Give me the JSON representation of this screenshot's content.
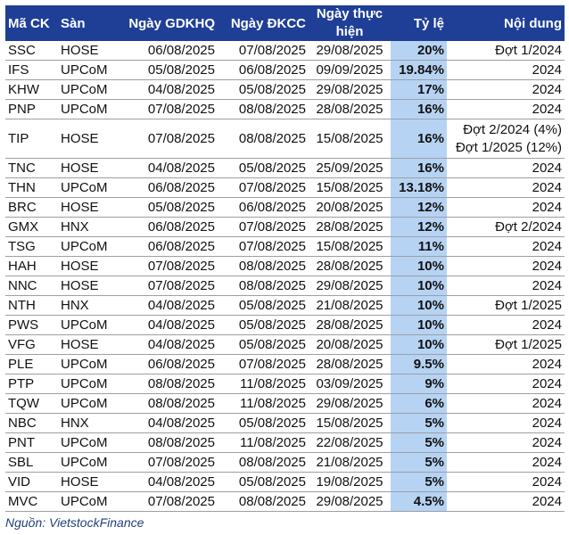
{
  "table": {
    "headers": {
      "code": "Mã CK",
      "exchange": "Sàn",
      "ex_date": "Ngày GDKHQ",
      "record_date": "Ngày ĐKCC",
      "pay_date": "Ngày thực hiện",
      "rate": "Tỷ lệ",
      "content": "Nội dung"
    },
    "rows": [
      {
        "code": "SSC",
        "exchange": "HOSE",
        "ex_date": "06/08/2025",
        "record_date": "07/08/2025",
        "pay_date": "29/08/2025",
        "rate": "20%",
        "content": "Đợt 1/2024"
      },
      {
        "code": "IFS",
        "exchange": "UPCoM",
        "ex_date": "05/08/2025",
        "record_date": "06/08/2025",
        "pay_date": "09/09/2025",
        "rate": "19.84%",
        "content": "2024"
      },
      {
        "code": "KHW",
        "exchange": "UPCoM",
        "ex_date": "04/08/2025",
        "record_date": "05/08/2025",
        "pay_date": "29/08/2025",
        "rate": "17%",
        "content": "2024"
      },
      {
        "code": "PNP",
        "exchange": "UPCoM",
        "ex_date": "07/08/2025",
        "record_date": "08/08/2025",
        "pay_date": "28/08/2025",
        "rate": "16%",
        "content": "2024"
      },
      {
        "code": "TIP",
        "exchange": "HOSE",
        "ex_date": "07/08/2025",
        "record_date": "08/08/2025",
        "pay_date": "15/08/2025",
        "rate": "16%",
        "content": "Đợt 2/2024 (4%)\nĐợt 1/2025 (12%)"
      },
      {
        "code": "TNC",
        "exchange": "HOSE",
        "ex_date": "04/08/2025",
        "record_date": "05/08/2025",
        "pay_date": "25/09/2025",
        "rate": "16%",
        "content": "2024"
      },
      {
        "code": "THN",
        "exchange": "UPCoM",
        "ex_date": "06/08/2025",
        "record_date": "07/08/2025",
        "pay_date": "15/08/2025",
        "rate": "13.18%",
        "content": "2024"
      },
      {
        "code": "BRC",
        "exchange": "HOSE",
        "ex_date": "05/08/2025",
        "record_date": "06/08/2025",
        "pay_date": "20/08/2025",
        "rate": "12%",
        "content": "2024"
      },
      {
        "code": "GMX",
        "exchange": "HNX",
        "ex_date": "06/08/2025",
        "record_date": "07/08/2025",
        "pay_date": "28/08/2025",
        "rate": "12%",
        "content": "Đợt 2/2024"
      },
      {
        "code": "TSG",
        "exchange": "UPCoM",
        "ex_date": "06/08/2025",
        "record_date": "07/08/2025",
        "pay_date": "15/08/2025",
        "rate": "11%",
        "content": "2024"
      },
      {
        "code": "HAH",
        "exchange": "HOSE",
        "ex_date": "07/08/2025",
        "record_date": "08/08/2025",
        "pay_date": "28/08/2025",
        "rate": "10%",
        "content": "2024"
      },
      {
        "code": "NNC",
        "exchange": "HOSE",
        "ex_date": "07/08/2025",
        "record_date": "08/08/2025",
        "pay_date": "29/08/2025",
        "rate": "10%",
        "content": "2024"
      },
      {
        "code": "NTH",
        "exchange": "HNX",
        "ex_date": "04/08/2025",
        "record_date": "05/08/2025",
        "pay_date": "21/08/2025",
        "rate": "10%",
        "content": "Đợt 1/2025"
      },
      {
        "code": "PWS",
        "exchange": "UPCoM",
        "ex_date": "04/08/2025",
        "record_date": "05/08/2025",
        "pay_date": "28/08/2025",
        "rate": "10%",
        "content": "2024"
      },
      {
        "code": "VFG",
        "exchange": "HOSE",
        "ex_date": "04/08/2025",
        "record_date": "05/08/2025",
        "pay_date": "20/08/2025",
        "rate": "10%",
        "content": "Đợt 1/2025"
      },
      {
        "code": "PLE",
        "exchange": "UPCoM",
        "ex_date": "06/08/2025",
        "record_date": "07/08/2025",
        "pay_date": "28/08/2025",
        "rate": "9.5%",
        "content": "2024"
      },
      {
        "code": "PTP",
        "exchange": "UPCoM",
        "ex_date": "08/08/2025",
        "record_date": "11/08/2025",
        "pay_date": "03/09/2025",
        "rate": "9%",
        "content": "2024"
      },
      {
        "code": "TQW",
        "exchange": "UPCoM",
        "ex_date": "08/08/2025",
        "record_date": "11/08/2025",
        "pay_date": "29/08/2025",
        "rate": "6%",
        "content": "2024"
      },
      {
        "code": "NBC",
        "exchange": "HNX",
        "ex_date": "04/08/2025",
        "record_date": "05/08/2025",
        "pay_date": "15/08/2025",
        "rate": "5%",
        "content": "2024"
      },
      {
        "code": "PNT",
        "exchange": "UPCoM",
        "ex_date": "08/08/2025",
        "record_date": "11/08/2025",
        "pay_date": "22/08/2025",
        "rate": "5%",
        "content": "2024"
      },
      {
        "code": "SBL",
        "exchange": "UPCoM",
        "ex_date": "07/08/2025",
        "record_date": "08/08/2025",
        "pay_date": "21/08/2025",
        "rate": "5%",
        "content": "2024"
      },
      {
        "code": "VID",
        "exchange": "HOSE",
        "ex_date": "04/08/2025",
        "record_date": "05/08/2025",
        "pay_date": "19/08/2025",
        "rate": "5%",
        "content": "2024"
      },
      {
        "code": "MVC",
        "exchange": "UPCoM",
        "ex_date": "07/08/2025",
        "record_date": "08/08/2025",
        "pay_date": "29/08/2025",
        "rate": "4.5%",
        "content": "2024"
      }
    ]
  },
  "source": "Nguồn: VietstockFinance",
  "colors": {
    "header_bg": "#1f3f97",
    "rate_bg": "#b7d3f3",
    "source_text": "#1f3f7a"
  }
}
